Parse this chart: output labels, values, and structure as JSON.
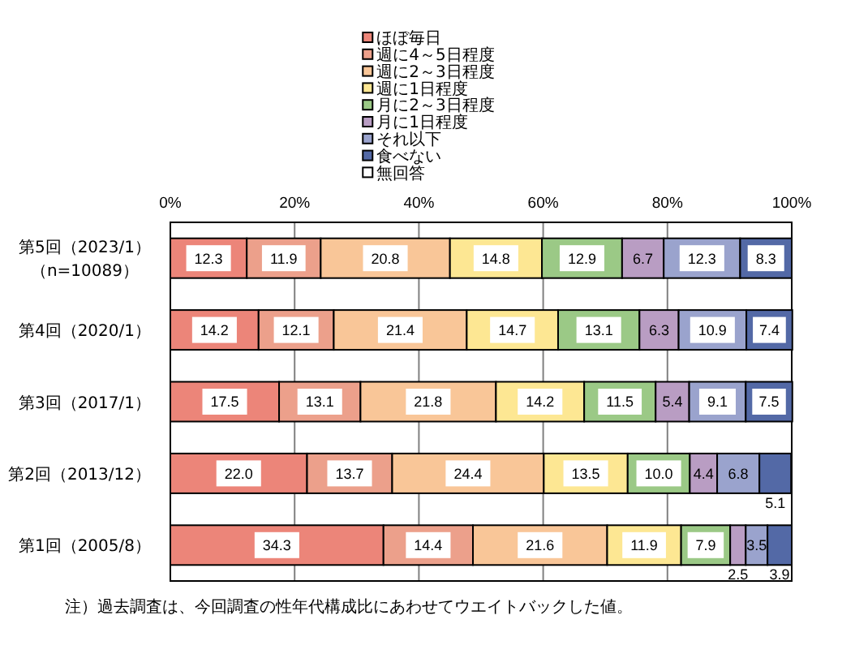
{
  "chart_data": {
    "type": "bar",
    "orientation": "horizontal",
    "stacked": true,
    "categories": [
      "第5回（2023/1）（n=10089）",
      "第4回（2020/1）",
      "第3回（2017/1）",
      "第2回（2013/12）",
      "第1回（2005/8）"
    ],
    "series": [
      {
        "name": "ほぼ毎日",
        "color": "#ec8579",
        "values": [
          12.3,
          14.2,
          17.5,
          22.0,
          34.3
        ],
        "value_labels": [
          "12.3",
          "14.2",
          "17.5",
          "22.0",
          "34.3"
        ]
      },
      {
        "name": "週に4～5日程度",
        "color": "#eca08b",
        "values": [
          11.9,
          12.1,
          13.1,
          13.7,
          14.4
        ],
        "value_labels": [
          "11.9",
          "12.1",
          "13.1",
          "13.7",
          "14.4"
        ]
      },
      {
        "name": "週に2～3日程度",
        "color": "#f9c698",
        "values": [
          20.8,
          21.4,
          21.8,
          24.4,
          21.6
        ],
        "value_labels": [
          "20.8",
          "21.4",
          "21.8",
          "24.4",
          "21.6"
        ]
      },
      {
        "name": "週に1日程度",
        "color": "#fde793",
        "values": [
          14.8,
          14.7,
          14.2,
          13.5,
          11.9
        ],
        "value_labels": [
          "14.8",
          "14.7",
          "14.2",
          "13.5",
          "11.9"
        ]
      },
      {
        "name": "月に2～3日程度",
        "color": "#9bc986",
        "values": [
          12.9,
          13.1,
          11.5,
          10.0,
          7.9
        ],
        "value_labels": [
          "12.9",
          "13.1",
          "11.5",
          "10.0",
          "7.9"
        ]
      },
      {
        "name": "月に1日程度",
        "color": "#b99dc3",
        "values": [
          6.7,
          6.3,
          5.4,
          4.4,
          2.5
        ],
        "value_labels": [
          "6.7",
          "6.3",
          "5.4",
          "4.4",
          "2.5"
        ]
      },
      {
        "name": "それ以下",
        "color": "#9aa3cd",
        "values": [
          12.3,
          10.9,
          9.1,
          6.8,
          3.5
        ],
        "value_labels": [
          "12.3",
          "10.9",
          "9.1",
          "6.8",
          "3.5"
        ]
      },
      {
        "name": "食べない",
        "color": "#5369a6",
        "values": [
          8.3,
          7.4,
          7.5,
          5.1,
          3.9
        ],
        "value_labels": [
          "8.3",
          "7.4",
          "7.5",
          "5.1",
          "3.9"
        ]
      },
      {
        "name": "無回答",
        "color": "#ffffff",
        "values": [
          null,
          null,
          null,
          null,
          null
        ]
      }
    ],
    "xlim": [
      0,
      100
    ],
    "xticks": [
      {
        "value": 0,
        "label": "0%"
      },
      {
        "value": 20,
        "label": "20%"
      },
      {
        "value": 40,
        "label": "40%"
      },
      {
        "value": 60,
        "label": "60%"
      },
      {
        "value": 80,
        "label": "80%"
      },
      {
        "value": 100,
        "label": "100%"
      }
    ],
    "grid": "x",
    "legend": "top",
    "annotations": [
      "注）過去調査は、今回調査の性年代構成比にあわせてウエイトバックした値。"
    ]
  }
}
